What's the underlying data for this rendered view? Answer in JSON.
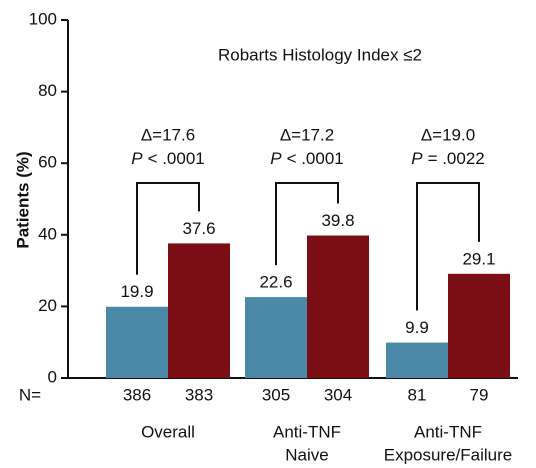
{
  "chart_data": {
    "type": "bar",
    "title": "Robarts Histology Index ≤2",
    "y_label": "Patients (%)",
    "categories": [
      [
        "Overall"
      ],
      [
        "Anti-TNF",
        "Naive"
      ],
      [
        "Anti-TNF",
        "Exposure/Failure"
      ]
    ],
    "series": [
      {
        "color": "#4a8aa8",
        "values": [
          19.9,
          22.6,
          9.9
        ],
        "n": [
          386,
          305,
          81
        ]
      },
      {
        "color": "#7a0e14",
        "values": [
          37.6,
          39.8,
          29.1
        ],
        "n": [
          383,
          304,
          79
        ]
      }
    ],
    "n_label": "N=",
    "annotations": [
      {
        "delta": "Δ=17.6",
        "p": "P",
        "p_text": "< .0001"
      },
      {
        "delta": "Δ=17.2",
        "p": "P",
        "p_text": "< .0001"
      },
      {
        "delta": "Δ=19.0",
        "p": "P",
        "p_text": "= .0022"
      }
    ],
    "ylim": [
      0,
      100
    ],
    "yticks": [
      0,
      20,
      40,
      60,
      80,
      100
    ]
  }
}
